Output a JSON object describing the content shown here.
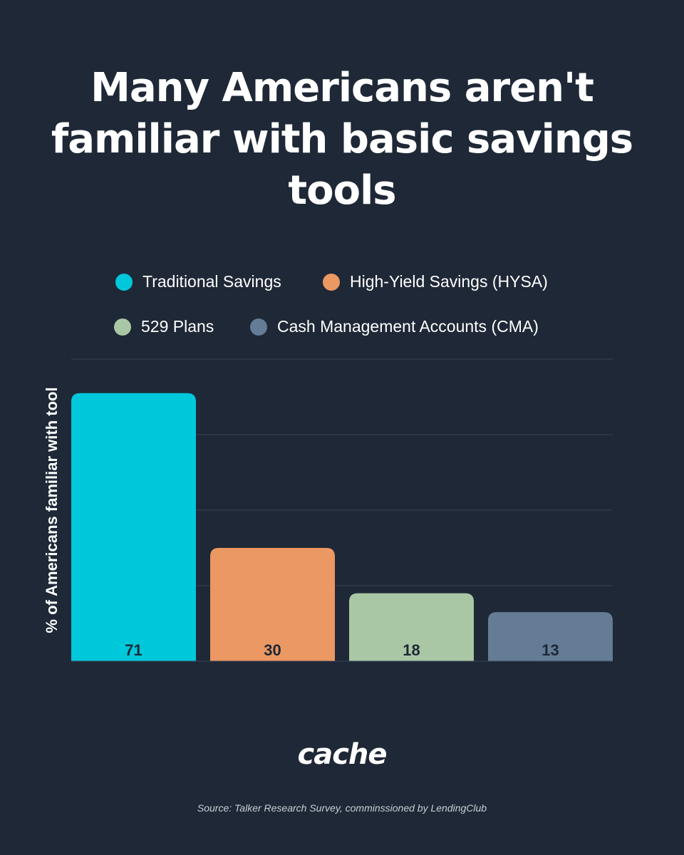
{
  "title": "Many Americans aren't familiar with basic savings tools",
  "brand": "cache",
  "source": "Source: Talker Research Survey, comminssioned by LendingClub",
  "chart_data": {
    "type": "bar",
    "categories": [
      "Traditional Savings",
      "High-Yield Savings (HYSA)",
      "529 Plans",
      "Cash Management Accounts (CMA)"
    ],
    "values": [
      71,
      30,
      18,
      13
    ],
    "colors": [
      "#00c8db",
      "#ec9862",
      "#a9c7a4",
      "#647c95"
    ],
    "legend": [
      "Traditional Savings",
      "High-Yield Savings (HYSA)",
      "529 Plans",
      "Cash Management Accounts (CMA)"
    ],
    "legend_position": "top",
    "ylabel": "% of Americans familiar with tool",
    "xlabel": "",
    "ylim": [
      0,
      80
    ],
    "grid": true,
    "data_labels": [
      "71",
      "30",
      "18",
      "13"
    ]
  }
}
